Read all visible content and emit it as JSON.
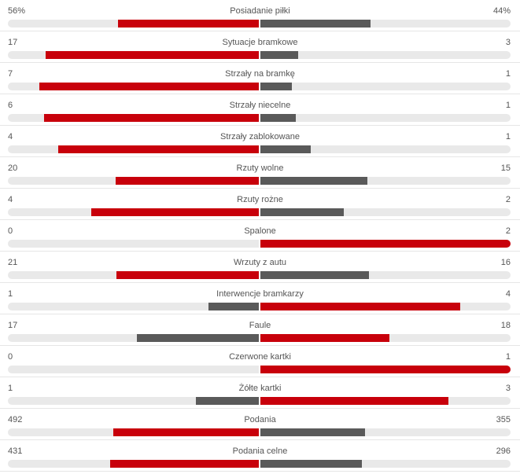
{
  "stats": [
    {
      "label": "Posiadanie piłki",
      "home": "56%",
      "away": "44%",
      "home_value": 56,
      "away_value": 44
    },
    {
      "label": "Sytuacje bramkowe",
      "home": "17",
      "away": "3",
      "home_value": 17,
      "away_value": 3
    },
    {
      "label": "Strzały na bramkę",
      "home": "7",
      "away": "1",
      "home_value": 7,
      "away_value": 1
    },
    {
      "label": "Strzały niecelne",
      "home": "6",
      "away": "1",
      "home_value": 6,
      "away_value": 1
    },
    {
      "label": "Strzały zablokowane",
      "home": "4",
      "away": "1",
      "home_value": 4,
      "away_value": 1
    },
    {
      "label": "Rzuty wolne",
      "home": "20",
      "away": "15",
      "home_value": 20,
      "away_value": 15
    },
    {
      "label": "Rzuty rożne",
      "home": "4",
      "away": "2",
      "home_value": 4,
      "away_value": 2
    },
    {
      "label": "Spalone",
      "home": "0",
      "away": "2",
      "home_value": 0,
      "away_value": 2
    },
    {
      "label": "Wrzuty z autu",
      "home": "21",
      "away": "16",
      "home_value": 21,
      "away_value": 16
    },
    {
      "label": "Interwencje bramkarzy",
      "home": "1",
      "away": "4",
      "home_value": 1,
      "away_value": 4
    },
    {
      "label": "Faule",
      "home": "17",
      "away": "18",
      "home_value": 17,
      "away_value": 18
    },
    {
      "label": "Czerwone kartki",
      "home": "0",
      "away": "1",
      "home_value": 0,
      "away_value": 1
    },
    {
      "label": "Żółte kartki",
      "home": "1",
      "away": "3",
      "home_value": 1,
      "away_value": 3
    },
    {
      "label": "Podania",
      "home": "492",
      "away": "355",
      "home_value": 492,
      "away_value": 355
    },
    {
      "label": "Podania celne",
      "home": "431",
      "away": "296",
      "home_value": 431,
      "away_value": 296
    }
  ],
  "colors": {
    "leader": "#c8000b",
    "trailer": "#5a5a5a",
    "track": "#e9e9e9"
  }
}
